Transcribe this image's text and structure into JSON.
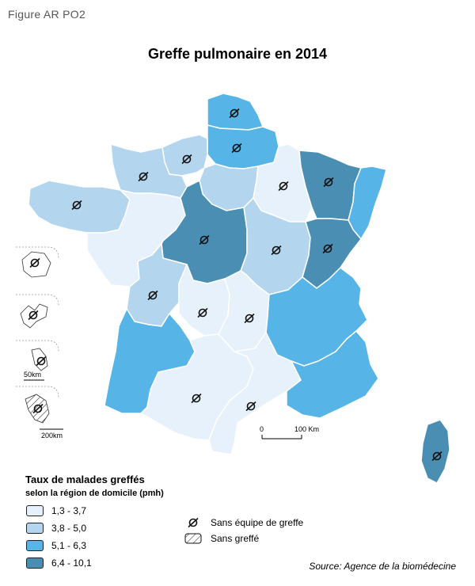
{
  "figure_label": "Figure AR PO2",
  "title": "Greffe pulmonaire en 2014",
  "colors": {
    "class1": "#e6f1fb",
    "class2": "#b3d5ee",
    "class3": "#56b4e6",
    "class4": "#4a8eb3",
    "border": "#ffffff",
    "outline": "#222222"
  },
  "legend": {
    "title": "Taux de malades greffés",
    "subtitle": "selon la région de domicile (pmh)",
    "classes": [
      {
        "label": "1,3 - 3,7",
        "color": "#e6f1fb"
      },
      {
        "label": "3,8 - 5,0",
        "color": "#b3d5ee"
      },
      {
        "label": "5,1 - 6,3",
        "color": "#56b4e6"
      },
      {
        "label": "6,4 - 10,1",
        "color": "#4a8eb3"
      }
    ],
    "symbols": [
      {
        "label": "Sans équipe de greffe",
        "icon": "slashed-circle-icon"
      },
      {
        "label": "Sans greffé",
        "icon": "hatched-box-icon"
      }
    ]
  },
  "scale": {
    "zero": "0",
    "distance": "100 Km"
  },
  "overseas_scales": [
    "50km",
    "200km"
  ],
  "source": "Source: Agence de la biomédecine"
}
